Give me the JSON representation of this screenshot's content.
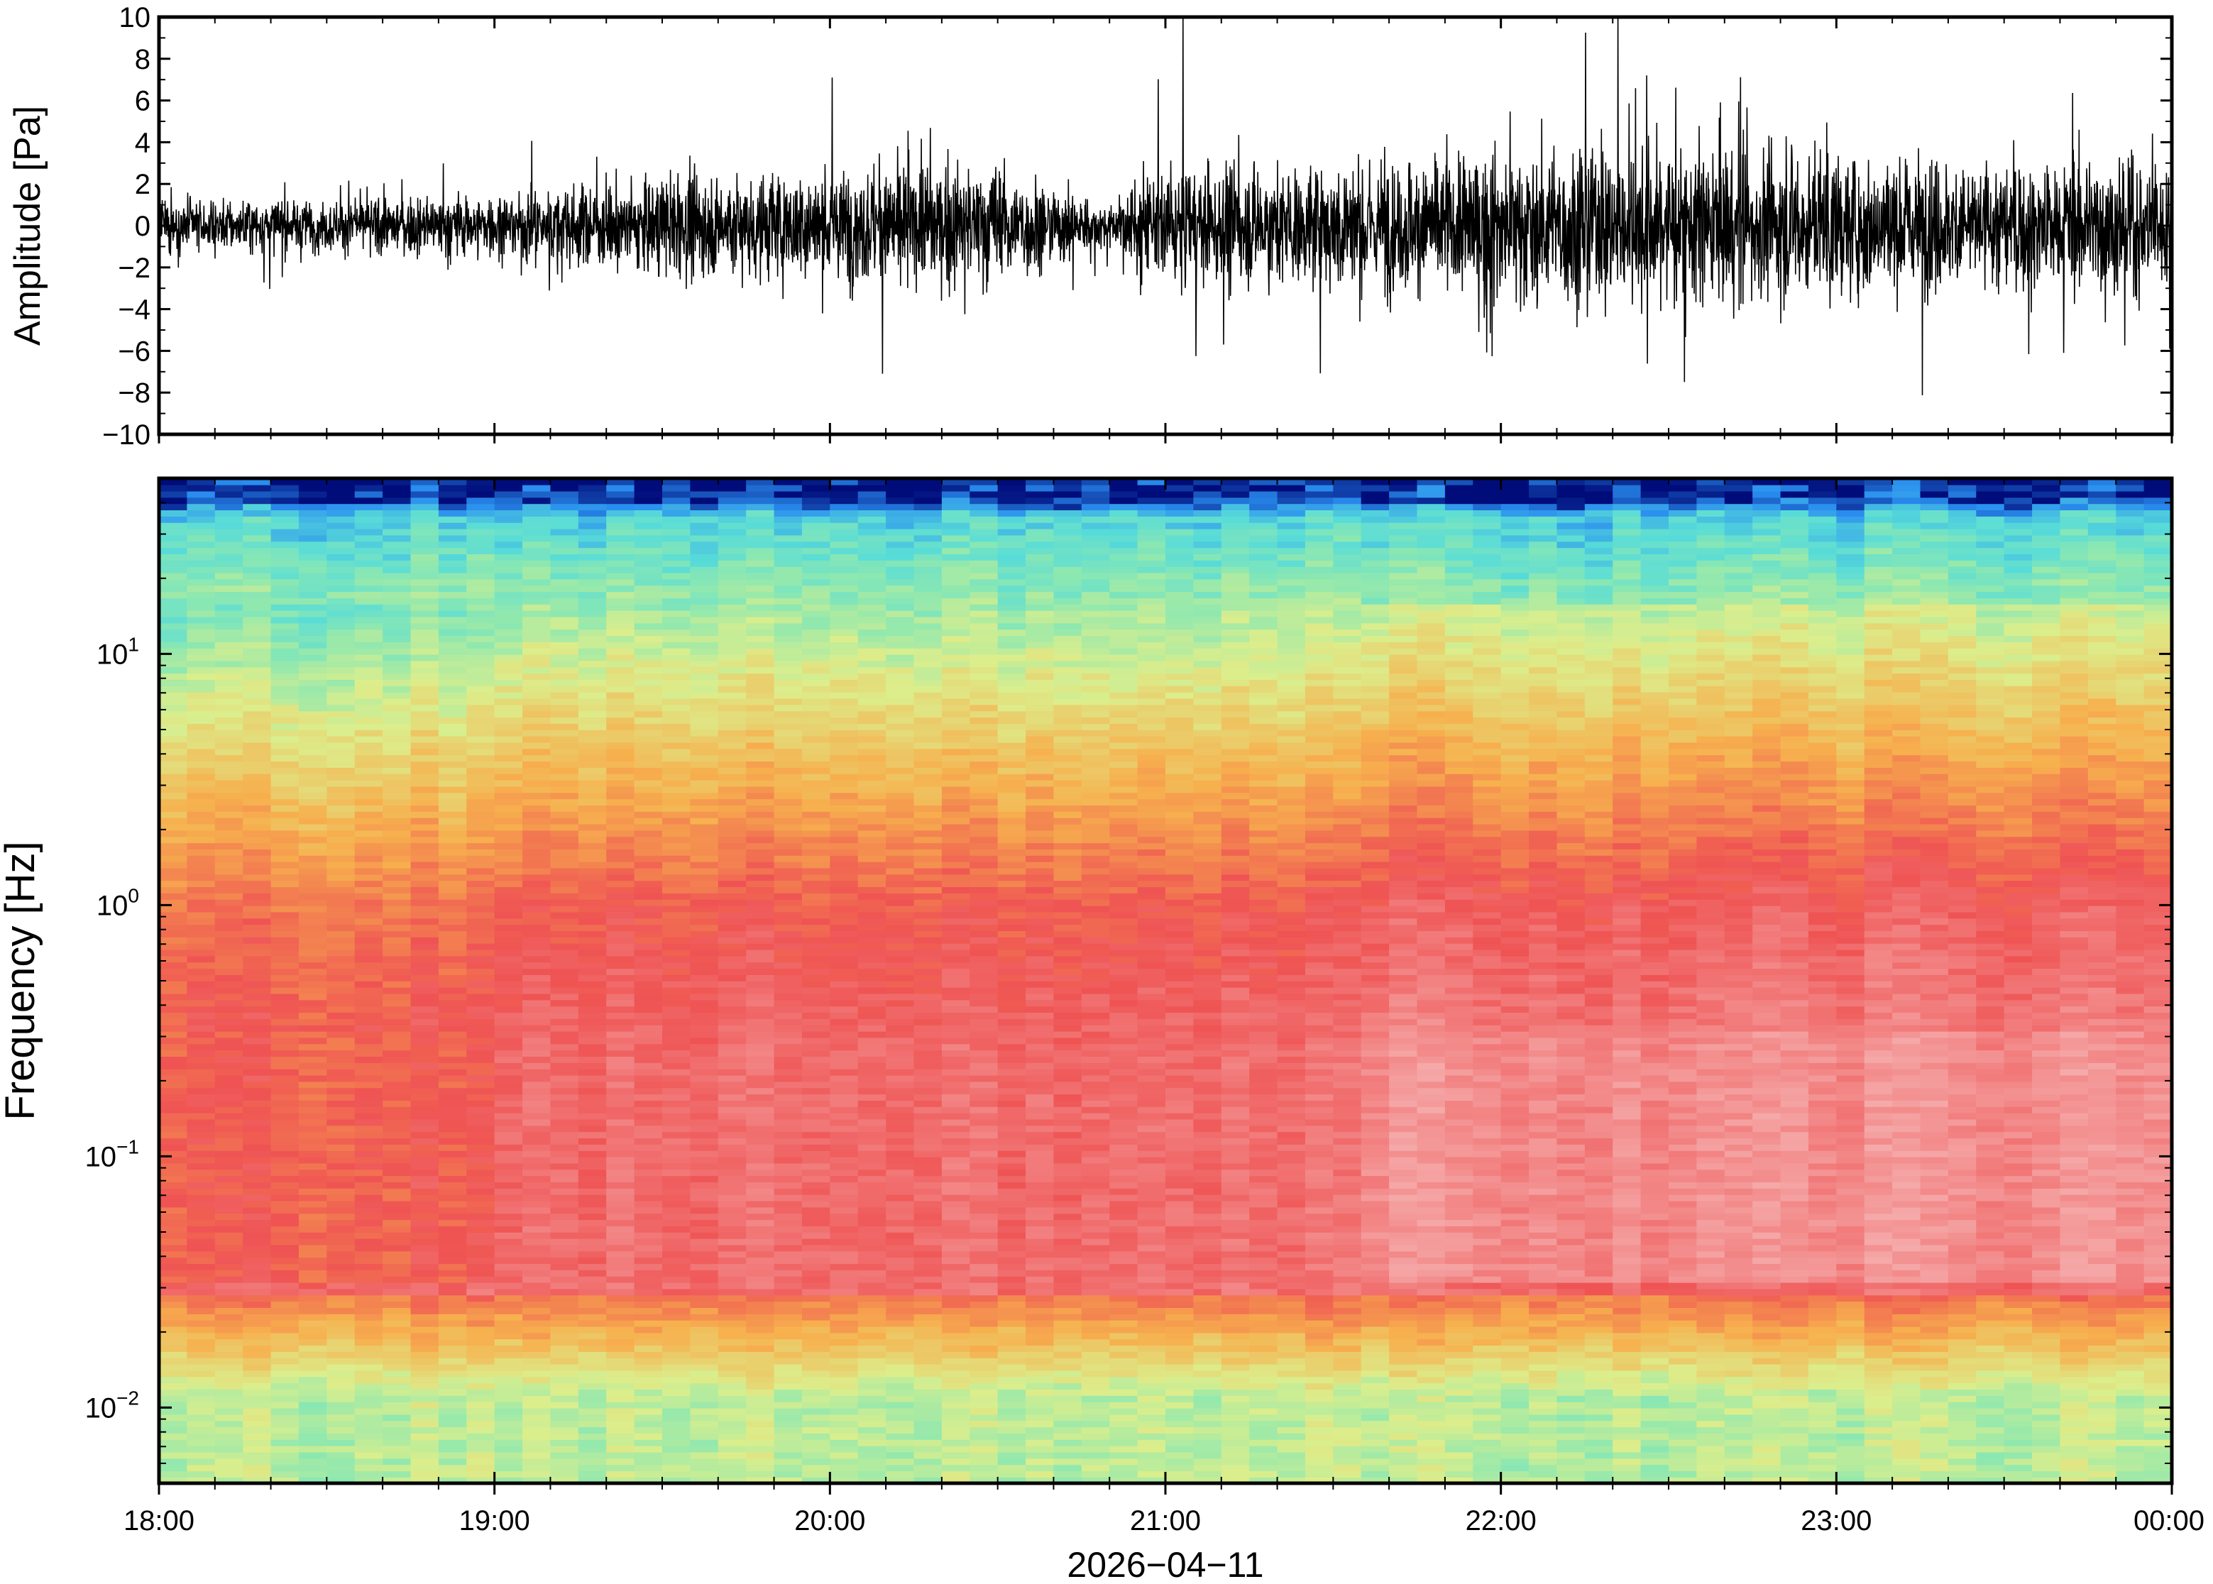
{
  "chart_data": [
    {
      "type": "line",
      "panel": "waveform",
      "ylabel": "Amplitude [Pa]",
      "ylim": [
        -10,
        10
      ],
      "y_ticks": [
        -10,
        -8,
        -6,
        -4,
        -2,
        0,
        2,
        4,
        6,
        8,
        10
      ],
      "y_tick_labels": [
        "−10",
        "−8",
        "−6",
        "−4",
        "−2",
        "0",
        "2",
        "4",
        "6",
        "8",
        "10"
      ],
      "x_range": [
        "18:00",
        "00:00"
      ],
      "series": [
        {
          "envelope_hours": [
            0.0,
            0.5,
            1.0,
            1.5,
            2.0,
            2.5,
            2.85,
            2.9,
            3.0,
            3.5,
            4.0,
            4.5,
            5.0,
            5.5,
            6.0
          ],
          "envelope_max_abs": [
            2.2,
            2.0,
            2.5,
            3.8,
            4.5,
            4.8,
            1.5,
            3.8,
            4.2,
            4.8,
            5.8,
            6.5,
            5.5,
            5.0,
            5.2
          ]
        }
      ]
    },
    {
      "type": "heatmap",
      "panel": "spectrogram",
      "ylabel": "Frequency [Hz]",
      "y_scale": "log",
      "ylim": [
        0.005,
        50
      ],
      "y_ticks": [
        {
          "value": 0.01,
          "base": "10",
          "exp": "−2"
        },
        {
          "value": 0.1,
          "base": "10",
          "exp": "−1"
        },
        {
          "value": 1,
          "base": "10",
          "exp": "0"
        },
        {
          "value": 10,
          "base": "10",
          "exp": "1"
        }
      ],
      "colors": {
        "very_low": "#000c7a",
        "low": "#2a8ef0",
        "cyan": "#58dcd8",
        "green": "#8ee8b0",
        "yellow": "#dcee8c",
        "orange": "#f7b04e",
        "red": "#ef5353",
        "pink": "#f5a8a8"
      }
    }
  ],
  "x_axis": {
    "ticks": [
      "18:00",
      "19:00",
      "20:00",
      "21:00",
      "22:00",
      "23:00",
      "00:00"
    ],
    "date_label": "2026−04−11"
  }
}
